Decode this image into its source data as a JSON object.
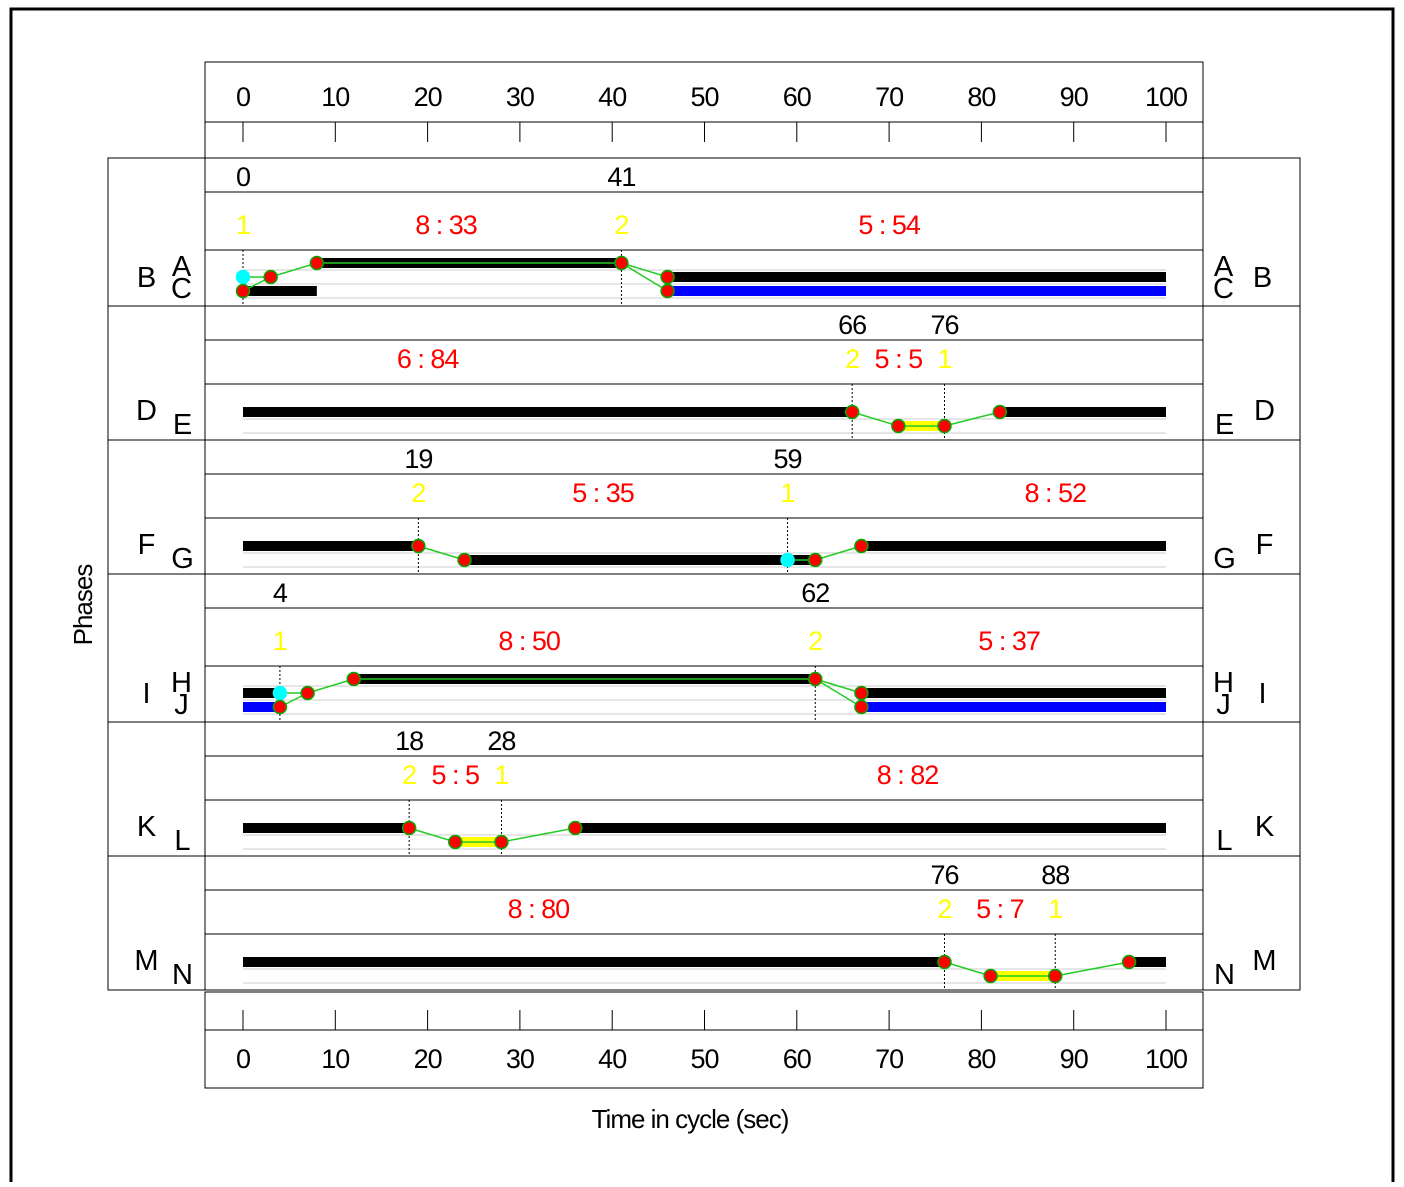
{
  "chart_data": {
    "type": "timing",
    "xlabel": "Time in cycle (sec)",
    "ylabel": "Phases",
    "xlim": [
      0,
      100
    ],
    "xticks": [
      0,
      10,
      20,
      30,
      40,
      50,
      60,
      70,
      80,
      90,
      100
    ],
    "colors": {
      "inner": "#000000",
      "outer": "#0000ff",
      "transition": "#ffff00",
      "point": "#ff0000",
      "point_outline": "#00aa00",
      "sync": "#00ffff",
      "link": "#22cc22",
      "label_yellow": "#ffff00",
      "label_red": "#ff0000"
    },
    "sections": [
      {
        "left_labels": [
          "B",
          "A",
          "C"
        ],
        "right_labels": [
          "A",
          "B",
          "C"
        ],
        "times": [
          0,
          41
        ],
        "events": [
          {
            "x": 0,
            "text": "1",
            "color": "yellow"
          },
          {
            "x": 22,
            "text": "8 : 33",
            "color": "red"
          },
          {
            "x": 41,
            "text": "2",
            "color": "yellow"
          },
          {
            "x": 70,
            "text": "5 : 54",
            "color": "red"
          }
        ],
        "sep_lines": [
          0,
          41
        ],
        "bars": [
          {
            "x1": 0,
            "x2": 8,
            "level": 2,
            "color": "black"
          },
          {
            "x1": 8,
            "x2": 41,
            "level": 0,
            "color": "black"
          },
          {
            "x1": 46,
            "x2": 100,
            "level": 1,
            "color": "black"
          },
          {
            "x1": 46,
            "x2": 100,
            "level": 2,
            "color": "blue"
          }
        ],
        "links": [
          [
            [
              0,
              1
            ],
            [
              3,
              1
            ],
            [
              8,
              0
            ],
            [
              41,
              0
            ],
            [
              46,
              1
            ]
          ],
          [
            [
              0,
              2
            ],
            [
              3,
              1
            ]
          ],
          [
            [
              41,
              0
            ],
            [
              46,
              2
            ]
          ]
        ],
        "points": [
          {
            "x": 0,
            "level": 1,
            "type": "sync"
          },
          {
            "x": 0,
            "level": 2
          },
          {
            "x": 3,
            "level": 1
          },
          {
            "x": 8,
            "level": 0
          },
          {
            "x": 41,
            "level": 0
          },
          {
            "x": 46,
            "level": 1
          },
          {
            "x": 46,
            "level": 2
          }
        ]
      },
      {
        "left_labels": [
          "D",
          "E"
        ],
        "right_labels": [
          "E",
          "D"
        ],
        "times": [
          66,
          76
        ],
        "events": [
          {
            "x": 20,
            "text": "6 : 84",
            "color": "red"
          },
          {
            "x": 66,
            "text": "2",
            "color": "yellow"
          },
          {
            "x": 71,
            "text": "5 : 5",
            "color": "red"
          },
          {
            "x": 76,
            "text": "1",
            "color": "yellow"
          }
        ],
        "sep_lines": [
          66,
          76
        ],
        "bars": [
          {
            "x1": 0,
            "x2": 66,
            "level": 0,
            "color": "black"
          },
          {
            "x1": 71,
            "x2": 76,
            "level": 1,
            "color": "yellow"
          },
          {
            "x1": 82,
            "x2": 100,
            "level": 0,
            "color": "black"
          }
        ],
        "links": [
          [
            [
              66,
              0
            ],
            [
              71,
              1
            ],
            [
              76,
              1
            ],
            [
              82,
              0
            ]
          ]
        ],
        "points": [
          {
            "x": 66,
            "level": 0
          },
          {
            "x": 71,
            "level": 1
          },
          {
            "x": 76,
            "level": 1
          },
          {
            "x": 82,
            "level": 0
          }
        ]
      },
      {
        "left_labels": [
          "F",
          "G"
        ],
        "right_labels": [
          "G",
          "F"
        ],
        "times": [
          19,
          59
        ],
        "events": [
          {
            "x": 19,
            "text": "2",
            "color": "yellow"
          },
          {
            "x": 39,
            "text": "5 : 35",
            "color": "red"
          },
          {
            "x": 59,
            "text": "1",
            "color": "yellow"
          },
          {
            "x": 88,
            "text": "8 : 52",
            "color": "red"
          }
        ],
        "sep_lines": [
          19,
          59
        ],
        "bars": [
          {
            "x1": 0,
            "x2": 19,
            "level": 0,
            "color": "black"
          },
          {
            "x1": 24,
            "x2": 62,
            "level": 1,
            "color": "black"
          },
          {
            "x1": 67,
            "x2": 100,
            "level": 0,
            "color": "black"
          }
        ],
        "links": [
          [
            [
              19,
              0
            ],
            [
              24,
              1
            ]
          ],
          [
            [
              59,
              1
            ],
            [
              62,
              1
            ],
            [
              67,
              0
            ]
          ]
        ],
        "points": [
          {
            "x": 19,
            "level": 0
          },
          {
            "x": 24,
            "level": 1
          },
          {
            "x": 59,
            "level": 1,
            "type": "sync"
          },
          {
            "x": 62,
            "level": 1
          },
          {
            "x": 67,
            "level": 0
          }
        ]
      },
      {
        "left_labels": [
          "I",
          "H",
          "J"
        ],
        "right_labels": [
          "H",
          "I",
          "J"
        ],
        "times": [
          4,
          62
        ],
        "events": [
          {
            "x": 4,
            "text": "1",
            "color": "yellow"
          },
          {
            "x": 31,
            "text": "8 : 50",
            "color": "red"
          },
          {
            "x": 62,
            "text": "2",
            "color": "yellow"
          },
          {
            "x": 83,
            "text": "5 : 37",
            "color": "red"
          }
        ],
        "sep_lines": [
          4,
          62
        ],
        "bars": [
          {
            "x1": 0,
            "x2": 4,
            "level": 1,
            "color": "black"
          },
          {
            "x1": 0,
            "x2": 4,
            "level": 2,
            "color": "blue"
          },
          {
            "x1": 12,
            "x2": 62,
            "level": 0,
            "color": "black"
          },
          {
            "x1": 67,
            "x2": 100,
            "level": 1,
            "color": "black"
          },
          {
            "x1": 67,
            "x2": 100,
            "level": 2,
            "color": "blue"
          }
        ],
        "links": [
          [
            [
              4,
              1
            ],
            [
              7,
              1
            ],
            [
              12,
              0
            ],
            [
              62,
              0
            ],
            [
              67,
              1
            ]
          ],
          [
            [
              4,
              2
            ],
            [
              7,
              1
            ]
          ],
          [
            [
              62,
              0
            ],
            [
              67,
              2
            ]
          ]
        ],
        "points": [
          {
            "x": 4,
            "level": 1,
            "type": "sync"
          },
          {
            "x": 4,
            "level": 2
          },
          {
            "x": 7,
            "level": 1
          },
          {
            "x": 12,
            "level": 0
          },
          {
            "x": 62,
            "level": 0
          },
          {
            "x": 67,
            "level": 1
          },
          {
            "x": 67,
            "level": 2
          }
        ]
      },
      {
        "left_labels": [
          "K",
          "L"
        ],
        "right_labels": [
          "L",
          "K"
        ],
        "times": [
          18,
          28
        ],
        "events": [
          {
            "x": 18,
            "text": "2",
            "color": "yellow"
          },
          {
            "x": 23,
            "text": "5 : 5",
            "color": "red"
          },
          {
            "x": 28,
            "text": "1",
            "color": "yellow"
          },
          {
            "x": 72,
            "text": "8 : 82",
            "color": "red"
          }
        ],
        "sep_lines": [
          18,
          28
        ],
        "bars": [
          {
            "x1": 0,
            "x2": 18,
            "level": 0,
            "color": "black"
          },
          {
            "x1": 23,
            "x2": 28,
            "level": 1,
            "color": "yellow"
          },
          {
            "x1": 36,
            "x2": 100,
            "level": 0,
            "color": "black"
          }
        ],
        "links": [
          [
            [
              18,
              0
            ],
            [
              23,
              1
            ],
            [
              28,
              1
            ],
            [
              36,
              0
            ]
          ]
        ],
        "points": [
          {
            "x": 18,
            "level": 0
          },
          {
            "x": 23,
            "level": 1
          },
          {
            "x": 28,
            "level": 1
          },
          {
            "x": 36,
            "level": 0
          }
        ]
      },
      {
        "left_labels": [
          "M",
          "N"
        ],
        "right_labels": [
          "N",
          "M"
        ],
        "times": [
          76,
          88
        ],
        "events": [
          {
            "x": 32,
            "text": "8 : 80",
            "color": "red"
          },
          {
            "x": 76,
            "text": "2",
            "color": "yellow"
          },
          {
            "x": 82,
            "text": "5 : 7",
            "color": "red"
          },
          {
            "x": 88,
            "text": "1",
            "color": "yellow"
          }
        ],
        "sep_lines": [
          76,
          88
        ],
        "bars": [
          {
            "x1": 0,
            "x2": 76,
            "level": 0,
            "color": "black"
          },
          {
            "x1": 81,
            "x2": 88,
            "level": 1,
            "color": "yellow"
          },
          {
            "x1": 96,
            "x2": 100,
            "level": 0,
            "color": "black"
          }
        ],
        "links": [
          [
            [
              76,
              0
            ],
            [
              81,
              1
            ],
            [
              88,
              1
            ],
            [
              96,
              0
            ]
          ]
        ],
        "points": [
          {
            "x": 76,
            "level": 0
          },
          {
            "x": 81,
            "level": 1
          },
          {
            "x": 88,
            "level": 1
          },
          {
            "x": 96,
            "level": 0
          }
        ]
      }
    ]
  }
}
